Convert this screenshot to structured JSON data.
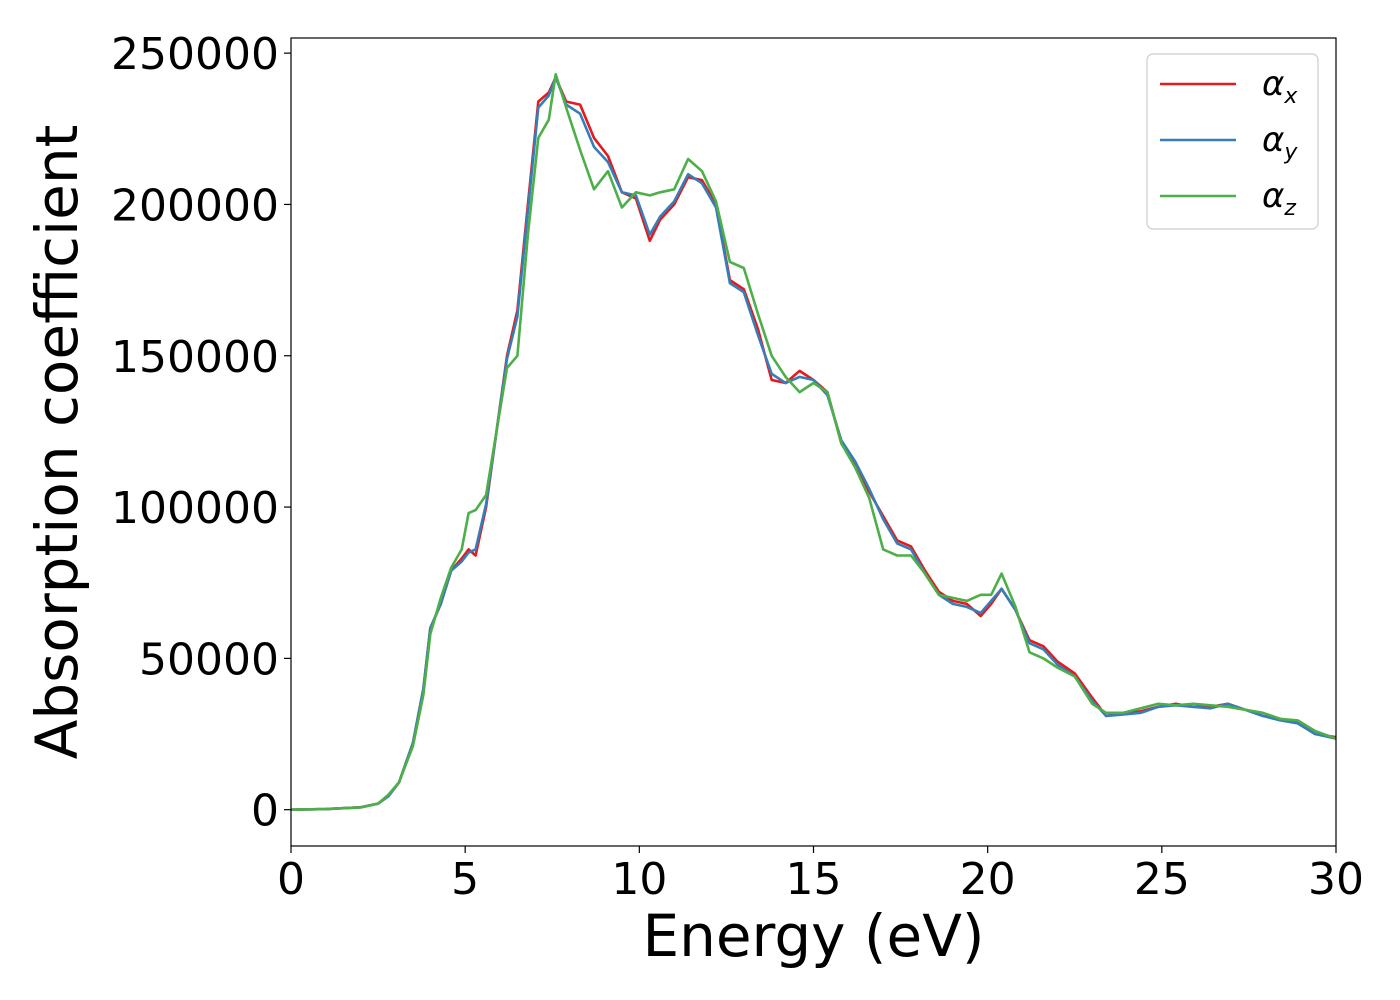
{
  "chart_data": {
    "type": "line",
    "xlabel": "Energy (eV)",
    "ylabel": "Absorption coefficient",
    "xlim": [
      0,
      30
    ],
    "ylim": [
      -12000,
      255000
    ],
    "xticks": [
      0,
      5,
      10,
      15,
      20,
      25,
      30
    ],
    "yticks": [
      0,
      50000,
      100000,
      150000,
      200000,
      250000
    ],
    "grid": false,
    "legend_position": "top-right",
    "series": [
      {
        "name": "α",
        "sub": "x",
        "color": "#e41a1c",
        "x": [
          0,
          1,
          2,
          2.5,
          2.8,
          3.1,
          3.5,
          3.8,
          4.0,
          4.3,
          4.6,
          4.9,
          5.1,
          5.3,
          5.6,
          5.9,
          6.2,
          6.5,
          6.8,
          7.1,
          7.4,
          7.6,
          7.9,
          8.3,
          8.7,
          9.1,
          9.5,
          9.9,
          10.3,
          10.6,
          11.0,
          11.4,
          11.8,
          12.2,
          12.6,
          13.0,
          13.4,
          13.8,
          14.2,
          14.6,
          15.0,
          15.4,
          15.8,
          16.2,
          16.6,
          17.0,
          17.4,
          17.8,
          18.2,
          18.6,
          19.0,
          19.4,
          19.8,
          20.1,
          20.4,
          20.8,
          21.2,
          21.6,
          22.0,
          22.5,
          23.0,
          23.4,
          23.9,
          24.4,
          24.9,
          25.4,
          25.9,
          26.4,
          26.9,
          27.4,
          27.9,
          28.4,
          28.9,
          29.4,
          30.0
        ],
        "y": [
          0,
          200,
          800,
          2000,
          4500,
          9000,
          22000,
          40000,
          60000,
          68000,
          79000,
          83000,
          86000,
          84000,
          100000,
          125000,
          150000,
          165000,
          200000,
          234000,
          237000,
          242000,
          234000,
          233000,
          222000,
          216000,
          204000,
          202000,
          188000,
          195000,
          200000,
          209000,
          208000,
          200000,
          175000,
          172000,
          159000,
          142000,
          141000,
          145000,
          142000,
          138000,
          121000,
          114000,
          105000,
          97000,
          89000,
          87000,
          79000,
          72000,
          69000,
          68000,
          64000,
          68000,
          73000,
          66000,
          56000,
          54000,
          49000,
          45000,
          37000,
          31000,
          32000,
          32500,
          34000,
          35000,
          34000,
          34000,
          35000,
          33000,
          31000,
          30000,
          29000,
          25000,
          24000
        ]
      },
      {
        "name": "α",
        "sub": "y",
        "color": "#377eb8",
        "x": [
          0,
          1,
          2,
          2.5,
          2.8,
          3.1,
          3.5,
          3.8,
          4.0,
          4.3,
          4.6,
          4.9,
          5.1,
          5.3,
          5.6,
          5.9,
          6.2,
          6.5,
          6.8,
          7.1,
          7.4,
          7.6,
          7.9,
          8.3,
          8.7,
          9.1,
          9.5,
          9.9,
          10.3,
          10.6,
          11.0,
          11.4,
          11.8,
          12.2,
          12.6,
          13.0,
          13.4,
          13.8,
          14.2,
          14.6,
          15.0,
          15.4,
          15.8,
          16.2,
          16.6,
          17.0,
          17.4,
          17.8,
          18.2,
          18.6,
          19.0,
          19.4,
          19.8,
          20.1,
          20.4,
          20.8,
          21.2,
          21.6,
          22.0,
          22.5,
          23.0,
          23.4,
          23.9,
          24.4,
          24.9,
          25.4,
          25.9,
          26.4,
          26.9,
          27.4,
          27.9,
          28.4,
          28.9,
          29.4,
          30.0
        ],
        "y": [
          0,
          200,
          800,
          2000,
          4500,
          9000,
          22000,
          40000,
          60000,
          68000,
          79000,
          82000,
          85000,
          86000,
          101000,
          125000,
          149000,
          163000,
          198000,
          232000,
          236000,
          242000,
          233000,
          230000,
          219000,
          214000,
          204000,
          203000,
          190000,
          196000,
          201000,
          210000,
          207000,
          199000,
          174000,
          171000,
          157000,
          144000,
          141000,
          143000,
          142000,
          137000,
          122000,
          115000,
          106000,
          96000,
          88000,
          86000,
          78000,
          71000,
          68000,
          67000,
          65000,
          69000,
          73000,
          66000,
          55000,
          53000,
          48000,
          44000,
          36000,
          31000,
          31500,
          32000,
          34000,
          34500,
          34000,
          33500,
          35000,
          33000,
          31000,
          29500,
          28500,
          25000,
          23500
        ]
      },
      {
        "name": "α",
        "sub": "z",
        "color": "#4daf4a",
        "x": [
          0,
          1,
          2,
          2.5,
          2.8,
          3.1,
          3.5,
          3.8,
          4.0,
          4.3,
          4.6,
          4.9,
          5.1,
          5.3,
          5.6,
          5.9,
          6.2,
          6.5,
          6.8,
          7.1,
          7.4,
          7.6,
          7.9,
          8.3,
          8.7,
          9.1,
          9.5,
          9.9,
          10.3,
          10.6,
          11.0,
          11.4,
          11.8,
          12.2,
          12.6,
          13.0,
          13.4,
          13.8,
          14.2,
          14.6,
          15.0,
          15.4,
          15.8,
          16.2,
          16.6,
          17.0,
          17.4,
          17.8,
          18.2,
          18.6,
          19.0,
          19.4,
          19.8,
          20.1,
          20.4,
          20.8,
          21.2,
          21.6,
          22.0,
          22.5,
          23.0,
          23.4,
          23.9,
          24.4,
          24.9,
          25.4,
          25.9,
          26.4,
          26.9,
          27.4,
          27.9,
          28.4,
          28.9,
          29.4,
          30.0
        ],
        "y": [
          0,
          200,
          800,
          2000,
          5000,
          9000,
          21000,
          38000,
          58000,
          70000,
          80000,
          86000,
          98000,
          99000,
          104000,
          125000,
          146000,
          150000,
          190000,
          222000,
          228000,
          243000,
          232000,
          218000,
          205000,
          211000,
          199000,
          204000,
          203000,
          204000,
          205000,
          215000,
          211000,
          201000,
          181000,
          179000,
          164000,
          150000,
          143000,
          138000,
          141000,
          138000,
          121000,
          113000,
          103000,
          86000,
          84000,
          84000,
          78000,
          71000,
          70000,
          69000,
          71000,
          71000,
          78000,
          67000,
          52000,
          50000,
          47000,
          44000,
          35000,
          32000,
          32000,
          33500,
          35000,
          34500,
          35000,
          34500,
          34000,
          33000,
          32000,
          30000,
          29500,
          26000,
          23500
        ]
      }
    ]
  }
}
